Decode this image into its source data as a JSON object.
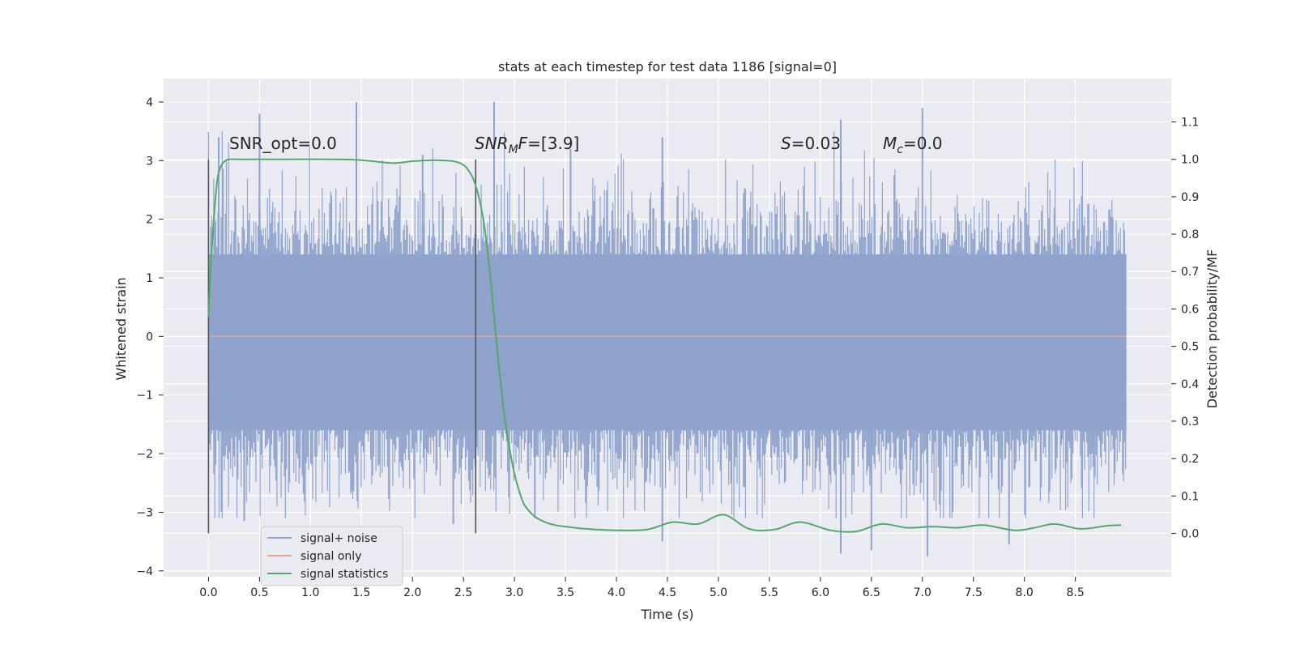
{
  "chart_data": {
    "type": "line",
    "title": "stats at each timestep for test data 1186 [signal=0]",
    "xlabel": "Time (s)",
    "ylabel": "Whitened strain",
    "y2label": "Detection probability/MF",
    "xlim": [
      -0.44,
      9.44
    ],
    "ylim": [
      -4.1,
      4.4
    ],
    "y2lim": [
      -0.116,
      1.216
    ],
    "x_ticks": [
      "0.0",
      "0.5",
      "1.0",
      "1.5",
      "2.0",
      "2.5",
      "3.0",
      "3.5",
      "4.0",
      "4.5",
      "5.0",
      "5.5",
      "6.0",
      "6.5",
      "7.0",
      "7.5",
      "8.0",
      "8.5"
    ],
    "y_ticks": [
      "4",
      "3",
      "2",
      "1",
      "0",
      "−1",
      "−2",
      "−3",
      "−4"
    ],
    "y2_ticks": [
      "1.1",
      "1.0",
      "0.9",
      "0.8",
      "0.7",
      "0.6",
      "0.5",
      "0.4",
      "0.3",
      "0.2",
      "0.1",
      "0.0"
    ],
    "grid": true,
    "legend_position": "lower-left",
    "colors": {
      "noise": "#8fa3cc",
      "signal_only": "#e8a589",
      "statistics": "#55a868",
      "vline": "#555555",
      "plot_bg": "#eaeaf2",
      "grid": "#ffffff"
    },
    "annotations": {
      "snr_opt": "SNR_opt=0.0",
      "snr_mf_a": "SNR",
      "snr_mf_sub": "M",
      "snr_mf_b": "F",
      "snr_mf_c": "=[3.9]",
      "s_a": "S",
      "s_b": "=0.03",
      "mc_a": "M",
      "mc_sub": "c",
      "mc_b": "=0.0"
    },
    "vertical_lines": [
      0.0,
      2.62
    ],
    "series": [
      {
        "name": "signal+ noise",
        "x_range": [
          0.0,
          9.0
        ],
        "body_min": -1.6,
        "body_max": 1.4,
        "outliers": [
          {
            "x": 0.1,
            "y": 3.4
          },
          {
            "x": 0.5,
            "y": 3.8
          },
          {
            "x": 1.45,
            "y": 4.0
          },
          {
            "x": 2.1,
            "y": 3.1
          },
          {
            "x": 2.8,
            "y": 4.0
          },
          {
            "x": 3.55,
            "y": 3.2
          },
          {
            "x": 4.45,
            "y": 3.4
          },
          {
            "x": 6.2,
            "y": 3.7
          },
          {
            "x": 7.0,
            "y": 3.9
          },
          {
            "x": 0.35,
            "y": -3.15
          },
          {
            "x": 2.4,
            "y": -3.2
          },
          {
            "x": 3.2,
            "y": -3.1
          },
          {
            "x": 4.45,
            "y": -3.5
          },
          {
            "x": 6.2,
            "y": -3.7
          },
          {
            "x": 6.5,
            "y": -3.65
          },
          {
            "x": 7.05,
            "y": -3.75
          },
          {
            "x": 7.85,
            "y": -3.55
          }
        ]
      },
      {
        "name": "signal only",
        "x": [
          0.0,
          9.0
        ],
        "y": [
          0.0,
          0.0
        ]
      },
      {
        "name": "signal statistics",
        "axis": "right",
        "x": [
          0.0,
          0.03,
          0.08,
          0.12,
          0.16,
          0.2,
          0.3,
          0.5,
          0.8,
          1.2,
          1.5,
          1.8,
          2.0,
          2.2,
          2.4,
          2.5,
          2.55,
          2.6,
          2.65,
          2.7,
          2.75,
          2.8,
          2.85,
          2.9,
          2.95,
          3.0,
          3.05,
          3.1,
          3.2,
          3.3,
          3.4,
          3.5,
          3.7,
          4.0,
          4.3,
          4.55,
          4.8,
          5.05,
          5.3,
          5.55,
          5.8,
          6.1,
          6.35,
          6.6,
          6.85,
          7.1,
          7.35,
          7.6,
          7.9,
          8.1,
          8.3,
          8.55,
          8.8,
          8.95
        ],
        "y": [
          0.58,
          0.75,
          0.93,
          0.98,
          0.995,
          1.0,
          1.0,
          1.0,
          1.0,
          1.0,
          0.998,
          0.99,
          0.995,
          0.998,
          0.995,
          0.985,
          0.97,
          0.945,
          0.9,
          0.83,
          0.72,
          0.58,
          0.44,
          0.32,
          0.23,
          0.16,
          0.11,
          0.075,
          0.045,
          0.03,
          0.022,
          0.018,
          0.012,
          0.008,
          0.01,
          0.03,
          0.025,
          0.05,
          0.012,
          0.01,
          0.03,
          0.008,
          0.005,
          0.025,
          0.015,
          0.018,
          0.015,
          0.022,
          0.008,
          0.015,
          0.025,
          0.012,
          0.02,
          0.022
        ]
      }
    ]
  }
}
